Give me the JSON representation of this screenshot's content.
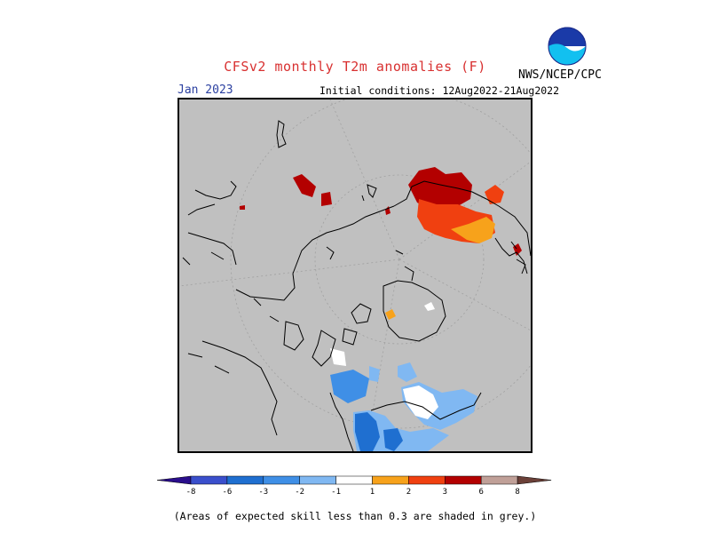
{
  "title": "CFSv2 monthly T2m anomalies (F)",
  "target_month": "Jan 2023",
  "initial_conditions": "Initial conditions: 12Aug2022-21Aug2022",
  "agency": "NWS/NCEP/CPC",
  "logo_text": "NOAA",
  "footnote": "(Areas of expected skill less than 0.3 are shaded in grey.)",
  "colors": {
    "skill_grey": "#c0c0c0",
    "neutral": "#ffffff",
    "title_red": "#d83030",
    "month_blue": "#2a3fa0"
  },
  "legend": {
    "ticks": [
      "-8",
      "-6",
      "-3",
      "-2",
      "-1",
      "1",
      "2",
      "3",
      "6",
      "8"
    ],
    "bins": [
      {
        "label": "< -8",
        "color": "#2a0e8c"
      },
      {
        "label": "-8 to -6",
        "color": "#3a4fcc"
      },
      {
        "label": "-6 to -3",
        "color": "#1f6fd0"
      },
      {
        "label": "-3 to -2",
        "color": "#3f8fe6"
      },
      {
        "label": "-2 to -1",
        "color": "#80b8f2"
      },
      {
        "label": "-1 to 1",
        "color": "#ffffff"
      },
      {
        "label": "1 to 2",
        "color": "#f7a21b"
      },
      {
        "label": "2 to 3",
        "color": "#f04010"
      },
      {
        "label": "3 to 6",
        "color": "#b30000"
      },
      {
        "label": "6 to 8",
        "color": "#c0a098"
      },
      {
        "label": "> 8",
        "color": "#6b4038"
      }
    ]
  }
}
